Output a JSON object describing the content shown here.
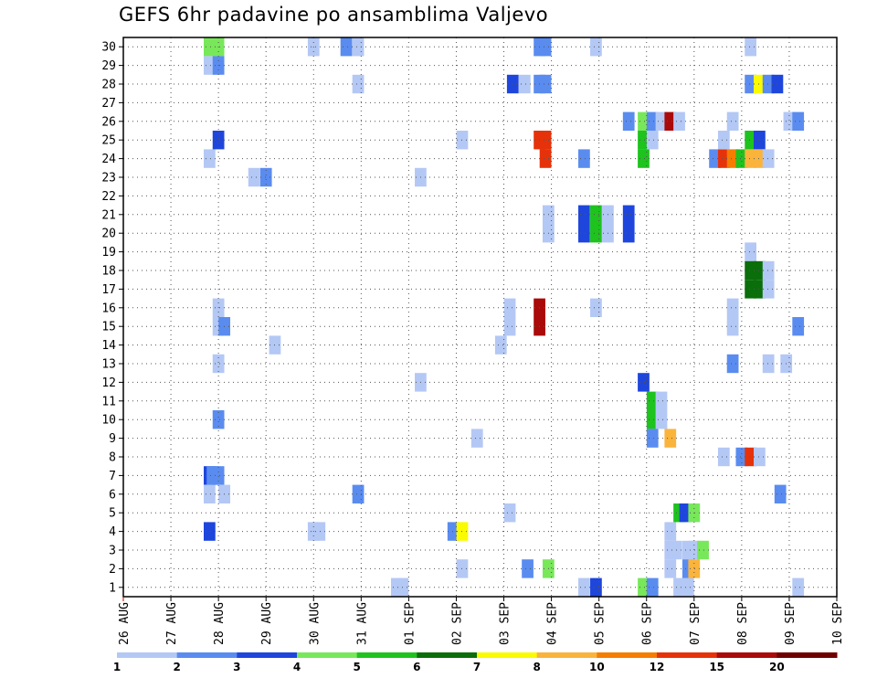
{
  "chart_data": {
    "type": "heatmap",
    "title": "GEFS 6hr padavine po ansamblima Valjevo",
    "xlabel": "",
    "ylabel": "",
    "x_ticks": [
      "26 AUG",
      "27 AUG",
      "28 AUG",
      "29 AUG",
      "30 AUG",
      "31 AUG",
      "01 SEP",
      "02 SEP",
      "03 SEP",
      "04 SEP",
      "05 SEP",
      "06 SEP",
      "07 SEP",
      "08 SEP",
      "09 SEP",
      "10 SEP"
    ],
    "y_ticks": [
      "1",
      "2",
      "3",
      "4",
      "5",
      "6",
      "7",
      "8",
      "9",
      "10",
      "11",
      "12",
      "13",
      "14",
      "15",
      "16",
      "17",
      "18",
      "19",
      "20",
      "21",
      "22",
      "23",
      "24",
      "25",
      "26",
      "27",
      "28",
      "29",
      "30"
    ],
    "xlim": [
      0,
      60
    ],
    "ylim": [
      0.5,
      30.5
    ],
    "x_unit": "6-hour steps from 26 AUG 00Z",
    "grid": true,
    "colorbar": {
      "labels": [
        "1",
        "2",
        "3",
        "4",
        "5",
        "6",
        "7",
        "8",
        "10",
        "12",
        "15",
        "20"
      ],
      "colors": [
        "#b4c8f5",
        "#5a8cf0",
        "#1e46dc",
        "#78e85a",
        "#1ec31e",
        "#0a6e0a",
        "#fafa00",
        "#fab43c",
        "#f57d00",
        "#e6320a",
        "#aa0a0a",
        "#6e0000"
      ]
    },
    "cells": [
      [
        7.25,
        30,
        3
      ],
      [
        7.25,
        29,
        0
      ],
      [
        7.25,
        24,
        0
      ],
      [
        7.25,
        7,
        2
      ],
      [
        7.25,
        6,
        0
      ],
      [
        7.25,
        4,
        2
      ],
      [
        7.5,
        7,
        1
      ],
      [
        8.0,
        30,
        3
      ],
      [
        8.0,
        29,
        1
      ],
      [
        8.0,
        25,
        2
      ],
      [
        8.0,
        16,
        0
      ],
      [
        8.0,
        15,
        0
      ],
      [
        8.0,
        13,
        0
      ],
      [
        8.0,
        10,
        1
      ],
      [
        8.0,
        7,
        1
      ],
      [
        8.5,
        15,
        1
      ],
      [
        8.5,
        6,
        0
      ],
      [
        11.0,
        23,
        0
      ],
      [
        12.0,
        23,
        1
      ],
      [
        12.75,
        14,
        0
      ],
      [
        16.0,
        30,
        0
      ],
      [
        16.0,
        4,
        0
      ],
      [
        16.5,
        4,
        0
      ],
      [
        18.75,
        30,
        1
      ],
      [
        19.75,
        30,
        0
      ],
      [
        19.75,
        28,
        0
      ],
      [
        19.75,
        6,
        1
      ],
      [
        23.0,
        1,
        0
      ],
      [
        23.5,
        1,
        0
      ],
      [
        25.0,
        23,
        0
      ],
      [
        25.0,
        12,
        0
      ],
      [
        27.75,
        4,
        1
      ],
      [
        28.5,
        4,
        6
      ],
      [
        28.5,
        25,
        0
      ],
      [
        28.5,
        2,
        0
      ],
      [
        29.75,
        9,
        0
      ],
      [
        31.75,
        14,
        0
      ],
      [
        32.5,
        16,
        0
      ],
      [
        32.5,
        5,
        0
      ],
      [
        32.5,
        15,
        0
      ],
      [
        32.75,
        28,
        2
      ],
      [
        33.75,
        28,
        0
      ],
      [
        34.0,
        2,
        1
      ],
      [
        35.0,
        30,
        1
      ],
      [
        35.5,
        30,
        1
      ],
      [
        35.0,
        28,
        1
      ],
      [
        35.5,
        28,
        1
      ],
      [
        35.0,
        25,
        9
      ],
      [
        35.5,
        25,
        9
      ],
      [
        35.5,
        24,
        9
      ],
      [
        35.0,
        16,
        10
      ],
      [
        35.0,
        15,
        10
      ],
      [
        35.75,
        21,
        0
      ],
      [
        35.75,
        20,
        0
      ],
      [
        35.75,
        2,
        3
      ],
      [
        38.75,
        24,
        1
      ],
      [
        38.75,
        1,
        0
      ],
      [
        38.75,
        20,
        2
      ],
      [
        38.75,
        21,
        2
      ],
      [
        39.75,
        21,
        4
      ],
      [
        39.75,
        20,
        4
      ],
      [
        39.75,
        1,
        2
      ],
      [
        39.75,
        30,
        0
      ],
      [
        39.75,
        16,
        0
      ],
      [
        40.75,
        21,
        0
      ],
      [
        40.75,
        20,
        0
      ],
      [
        42.5,
        26,
        1
      ],
      [
        42.5,
        21,
        2
      ],
      [
        42.5,
        20,
        2
      ],
      [
        43.75,
        26,
        3
      ],
      [
        43.75,
        25,
        4
      ],
      [
        43.75,
        24,
        4
      ],
      [
        43.75,
        12,
        2
      ],
      [
        43.75,
        1,
        3
      ],
      [
        44.5,
        26,
        1
      ],
      [
        44.5,
        25,
        0
      ],
      [
        44.5,
        10,
        4
      ],
      [
        44.5,
        9,
        1
      ],
      [
        44.5,
        1,
        1
      ],
      [
        44.5,
        11,
        4
      ],
      [
        45.25,
        26,
        0
      ],
      [
        45.25,
        11,
        0
      ],
      [
        45.25,
        10,
        0
      ],
      [
        46.0,
        26,
        10
      ],
      [
        46.0,
        9,
        7
      ],
      [
        46.0,
        4,
        0
      ],
      [
        46.0,
        3,
        0
      ],
      [
        46.0,
        2,
        0
      ],
      [
        46.75,
        26,
        0
      ],
      [
        46.75,
        1,
        0
      ],
      [
        46.5,
        3,
        0
      ],
      [
        46.75,
        5,
        4
      ],
      [
        47.25,
        5,
        2
      ],
      [
        47.5,
        1,
        0
      ],
      [
        47.5,
        3,
        0
      ],
      [
        47.5,
        2,
        1
      ],
      [
        48.0,
        5,
        3
      ],
      [
        48.0,
        2,
        7
      ],
      [
        48.0,
        3,
        0
      ],
      [
        48.75,
        3,
        3
      ],
      [
        49.75,
        24,
        1
      ],
      [
        50.5,
        24,
        9
      ],
      [
        51.25,
        24,
        8
      ],
      [
        52.0,
        24,
        4
      ],
      [
        50.5,
        25,
        0
      ],
      [
        50.5,
        8,
        0
      ],
      [
        51.25,
        26,
        0
      ],
      [
        51.25,
        16,
        0
      ],
      [
        51.25,
        15,
        0
      ],
      [
        51.25,
        13,
        1
      ],
      [
        52.0,
        8,
        1
      ],
      [
        52.75,
        8,
        9
      ],
      [
        53.5,
        8,
        0
      ],
      [
        52.75,
        19,
        0
      ],
      [
        52.75,
        18,
        5
      ],
      [
        52.75,
        17,
        5
      ],
      [
        53.5,
        18,
        5
      ],
      [
        53.5,
        17,
        5
      ],
      [
        54.25,
        18,
        0
      ],
      [
        54.25,
        17,
        0
      ],
      [
        52.75,
        30,
        0
      ],
      [
        52.75,
        28,
        1
      ],
      [
        53.5,
        28,
        6
      ],
      [
        54.25,
        28,
        1
      ],
      [
        55.0,
        28,
        2
      ],
      [
        52.75,
        25,
        4
      ],
      [
        53.5,
        25,
        2
      ],
      [
        52.75,
        24,
        7
      ],
      [
        53.5,
        24,
        7
      ],
      [
        54.25,
        24,
        0
      ],
      [
        54.25,
        13,
        0
      ],
      [
        55.75,
        13,
        0
      ],
      [
        55.25,
        6,
        1
      ],
      [
        56.0,
        26,
        0
      ],
      [
        56.75,
        26,
        1
      ],
      [
        56.75,
        15,
        1
      ],
      [
        56.75,
        1,
        0
      ]
    ]
  }
}
